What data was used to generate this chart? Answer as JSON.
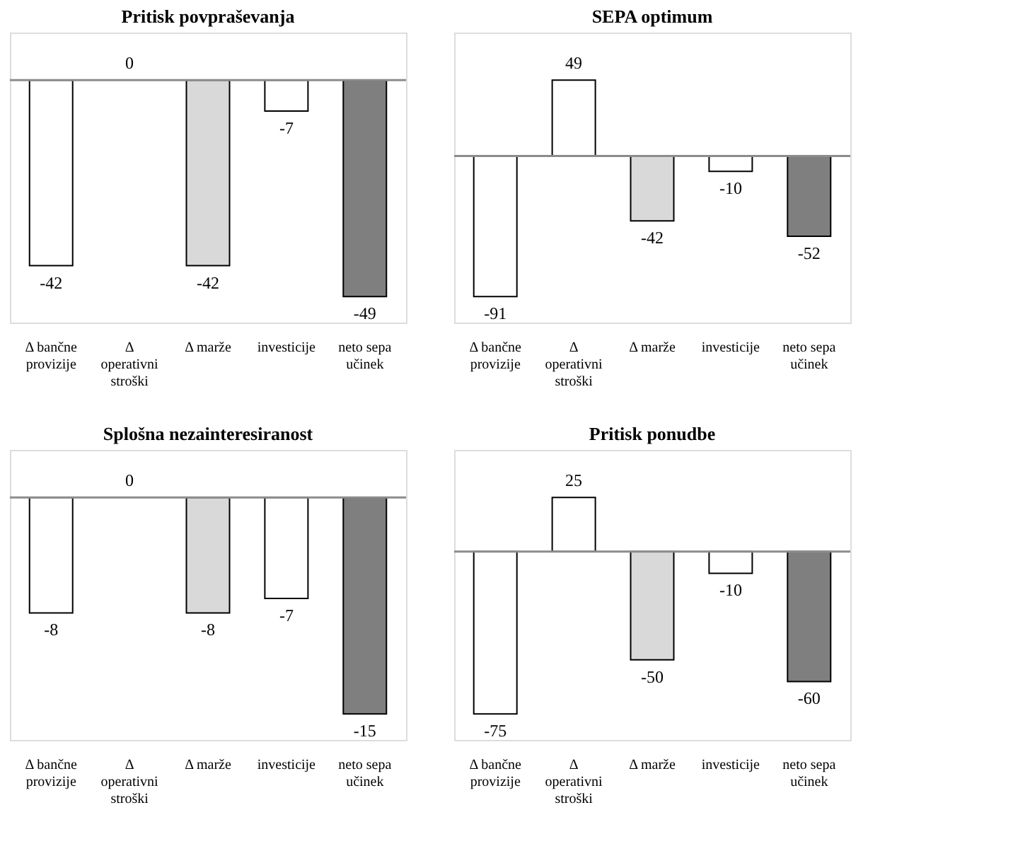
{
  "chart_data": [
    {
      "type": "bar",
      "title": "Pritisk povpraševanja",
      "categories": [
        "Δ bančne provizije",
        "Δ operativni stroški",
        "Δ marže",
        "investicije",
        "neto sepa učinek"
      ],
      "values": [
        -42,
        0,
        -42,
        -7,
        -49
      ],
      "colors": [
        "#ffffff",
        "#ffffff",
        "#d9d9d9",
        "#ffffff",
        "#7f7f7f"
      ],
      "data_labels": true
    },
    {
      "type": "bar",
      "title": "SEPA optimum",
      "categories": [
        "Δ bančne provizije",
        "Δ operativni stroški",
        "Δ marže",
        "investicije",
        "neto sepa učinek"
      ],
      "values": [
        -91,
        49,
        -42,
        -10,
        -52
      ],
      "colors": [
        "#ffffff",
        "#ffffff",
        "#d9d9d9",
        "#ffffff",
        "#7f7f7f"
      ],
      "data_labels": true
    },
    {
      "type": "bar",
      "title": "Splošna nezainteresiranost",
      "categories": [
        "Δ bančne provizije",
        "Δ operativni stroški",
        "Δ marže",
        "investicije",
        "neto sepa učinek"
      ],
      "values": [
        -8,
        0,
        -8,
        -7,
        -15
      ],
      "colors": [
        "#ffffff",
        "#ffffff",
        "#d9d9d9",
        "#ffffff",
        "#7f7f7f"
      ],
      "data_labels": true
    },
    {
      "type": "bar",
      "title": "Pritisk ponudbe",
      "categories": [
        "Δ bančne provizije",
        "Δ operativni stroški",
        "Δ marže",
        "investicije",
        "neto sepa učinek"
      ],
      "values": [
        -75,
        25,
        -50,
        -10,
        -60
      ],
      "colors": [
        "#ffffff",
        "#ffffff",
        "#d9d9d9",
        "#ffffff",
        "#7f7f7f"
      ],
      "data_labels": true
    }
  ]
}
